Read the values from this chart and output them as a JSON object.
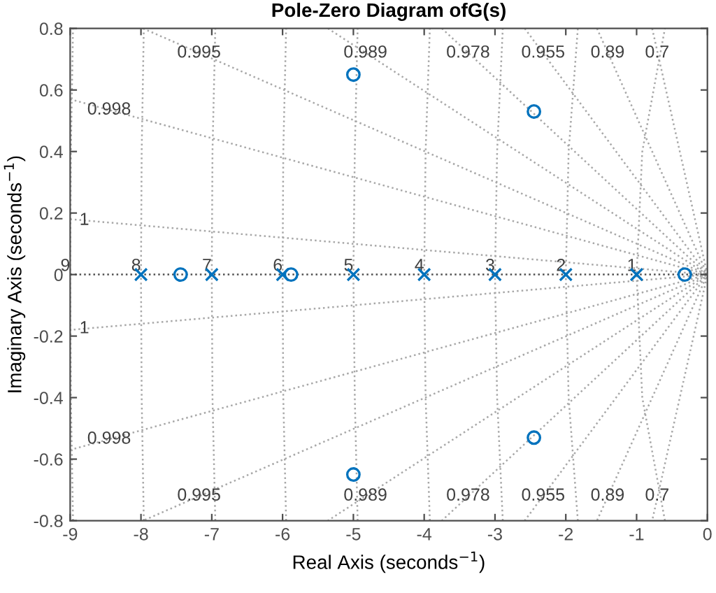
{
  "chart_data": {
    "type": "scatter",
    "title": "Pole-Zero Diagram ofG(s)",
    "xlabel": "Real Axis (seconds$^{−1}$)",
    "ylabel": "Imaginary Axis (seconds$^{−1}$)",
    "xlim": [
      -9,
      0
    ],
    "ylim": [
      -0.8,
      0.8
    ],
    "xticks": [
      -9,
      -8,
      -7,
      -6,
      -5,
      -4,
      -3,
      -2,
      -1,
      0
    ],
    "yticks": [
      -0.8,
      -0.6,
      -0.4,
      -0.2,
      0,
      0.2,
      0.4,
      0.6,
      0.8
    ],
    "grid": false,
    "legend": false,
    "series": [
      {
        "type": "line",
        "color": "#a8a8a8",
        "line_style": "dotted",
        "marker": "none",
        "x": [
          -9,
          0,
          -9
        ],
        "values": [
          0.18,
          0,
          -0.18
        ]
      },
      {
        "type": "line",
        "color": "#a8a8a8",
        "line_style": "dotted",
        "marker": "none",
        "x": [
          -9,
          0,
          -9
        ],
        "values": [
          0.57,
          0,
          -0.57
        ]
      },
      {
        "type": "line",
        "color": "#a8a8a8",
        "line_style": "dotted",
        "marker": "none",
        "x": [
          -7.97,
          0,
          -7.97
        ],
        "values": [
          0.8,
          0,
          -0.8
        ]
      },
      {
        "type": "line",
        "color": "#a8a8a8",
        "line_style": "dotted",
        "marker": "none",
        "x": [
          -5.36,
          0,
          -5.36
        ],
        "values": [
          0.8,
          0,
          -0.8
        ]
      },
      {
        "type": "line",
        "color": "#a8a8a8",
        "line_style": "dotted",
        "marker": "none",
        "x": [
          -3.75,
          0,
          -3.75
        ],
        "values": [
          0.8,
          0,
          -0.8
        ]
      },
      {
        "type": "line",
        "color": "#a8a8a8",
        "line_style": "dotted",
        "marker": "none",
        "x": [
          -2.58,
          0,
          -2.58
        ],
        "values": [
          0.8,
          0,
          -0.8
        ]
      },
      {
        "type": "line",
        "color": "#a8a8a8",
        "line_style": "dotted",
        "marker": "none",
        "x": [
          -1.56,
          0,
          -1.56
        ],
        "values": [
          0.8,
          0,
          -0.8
        ]
      },
      {
        "type": "line",
        "color": "#a8a8a8",
        "line_style": "dotted",
        "marker": "none",
        "x": [
          -0.78,
          0,
          -0.78
        ],
        "values": [
          0.8,
          0,
          -0.8
        ]
      },
      {
        "type": "line",
        "color": "#a8a8a8",
        "line_style": "dotted",
        "marker": "none",
        "x": [
          -0.6,
          -0.92,
          -1,
          -0.92,
          -0.6
        ],
        "values": [
          -0.8,
          -0.4,
          0,
          0.4,
          0.8
        ]
      },
      {
        "type": "line",
        "color": "#a8a8a8",
        "line_style": "dotted",
        "marker": "none",
        "x": [
          -1.83,
          -1.96,
          -2,
          -1.96,
          -1.83
        ],
        "values": [
          -0.8,
          -0.4,
          0,
          0.4,
          0.8
        ]
      },
      {
        "type": "line",
        "color": "#a8a8a8",
        "line_style": "dotted",
        "marker": "none",
        "x": [
          -2.89,
          -2.97,
          -3,
          -2.97,
          -2.89
        ],
        "values": [
          -0.8,
          -0.4,
          0,
          0.4,
          0.8
        ]
      },
      {
        "type": "line",
        "color": "#a8a8a8",
        "line_style": "dotted",
        "marker": "none",
        "x": [
          -3.92,
          -3.98,
          -4,
          -3.98,
          -3.92
        ],
        "values": [
          -0.8,
          -0.4,
          0,
          0.4,
          0.8
        ]
      },
      {
        "type": "line",
        "color": "#a8a8a8",
        "line_style": "dotted",
        "marker": "none",
        "x": [
          -4.94,
          -4.98,
          -5,
          -4.98,
          -4.94
        ],
        "values": [
          -0.8,
          -0.4,
          0,
          0.4,
          0.8
        ]
      },
      {
        "type": "line",
        "color": "#a8a8a8",
        "line_style": "dotted",
        "marker": "none",
        "x": [
          -5.95,
          -5.99,
          -6,
          -5.99,
          -5.95
        ],
        "values": [
          -0.8,
          -0.4,
          0,
          0.4,
          0.8
        ]
      },
      {
        "type": "line",
        "color": "#a8a8a8",
        "line_style": "dotted",
        "marker": "none",
        "x": [
          -6.95,
          -6.99,
          -7,
          -6.99,
          -6.95
        ],
        "values": [
          -0.8,
          -0.4,
          0,
          0.4,
          0.8
        ]
      },
      {
        "type": "line",
        "color": "#a8a8a8",
        "line_style": "dotted",
        "marker": "none",
        "x": [
          -7.96,
          -7.99,
          -8,
          -7.99,
          -7.96
        ],
        "values": [
          -0.8,
          -0.4,
          0,
          0.4,
          0.8
        ]
      },
      {
        "type": "line",
        "color": "#a8a8a8",
        "line_style": "dotted",
        "marker": "none",
        "x": [
          -8.96,
          -8.99,
          -9,
          -8.99,
          -8.96
        ],
        "values": [
          -0.8,
          -0.4,
          0,
          0.4,
          0.8
        ]
      },
      {
        "color": "#0072bd",
        "marker": "cross",
        "x": [
          -1,
          -2,
          -3,
          -4,
          -5,
          -6,
          -7,
          -8
        ],
        "values": [
          0,
          0,
          0,
          0,
          0,
          0,
          0,
          0
        ]
      },
      {
        "color": "#0072bd",
        "marker": "circle",
        "x": [
          -0.32,
          -2.45,
          -2.45,
          -5,
          -5,
          -5.88,
          -7.44
        ],
        "values": [
          0,
          0.53,
          -0.53,
          0.65,
          -0.65,
          0,
          0
        ]
      }
    ],
    "ref_lines": [
      {
        "axis": "y",
        "value": 0,
        "color": "#505050",
        "line_style": "dotted"
      }
    ],
    "annotations": [
      {
        "text": "9",
        "x": -9,
        "y": 0
      },
      {
        "text": "8",
        "x": -8,
        "y": 0
      },
      {
        "text": "7",
        "x": -7,
        "y": 0
      },
      {
        "text": "6",
        "x": -6,
        "y": 0
      },
      {
        "text": "5",
        "x": -5,
        "y": 0
      },
      {
        "text": "4",
        "x": -4,
        "y": 0
      },
      {
        "text": "3",
        "x": -3,
        "y": 0
      },
      {
        "text": "2",
        "x": -2,
        "y": 0
      },
      {
        "text": "1",
        "x": -1,
        "y": 0
      },
      {
        "text": "0.995",
        "x": -7.18,
        "y": 0.72
      },
      {
        "text": "0.989",
        "x": -4.83,
        "y": 0.72
      },
      {
        "text": "0.978",
        "x": -3.38,
        "y": 0.72
      },
      {
        "text": "0.955",
        "x": -2.32,
        "y": 0.72
      },
      {
        "text": "0.89",
        "x": -1.41,
        "y": 0.72
      },
      {
        "text": "0.7",
        "x": -0.71,
        "y": 0.72
      },
      {
        "text": "0.995",
        "x": -7.18,
        "y": -0.72
      },
      {
        "text": "0.989",
        "x": -4.83,
        "y": -0.72
      },
      {
        "text": "0.978",
        "x": -3.38,
        "y": -0.72
      },
      {
        "text": "0.955",
        "x": -2.32,
        "y": -0.72
      },
      {
        "text": "0.89",
        "x": -1.41,
        "y": -0.72
      },
      {
        "text": "0.7",
        "x": -0.71,
        "y": -0.72
      },
      {
        "text": "0.998",
        "x": -8.45,
        "y": 0.535
      },
      {
        "text": "1",
        "x": -8.8,
        "y": 0.176
      },
      {
        "text": "0.998",
        "x": -8.45,
        "y": -0.535
      },
      {
        "text": "1",
        "x": -8.8,
        "y": -0.176
      }
    ]
  }
}
